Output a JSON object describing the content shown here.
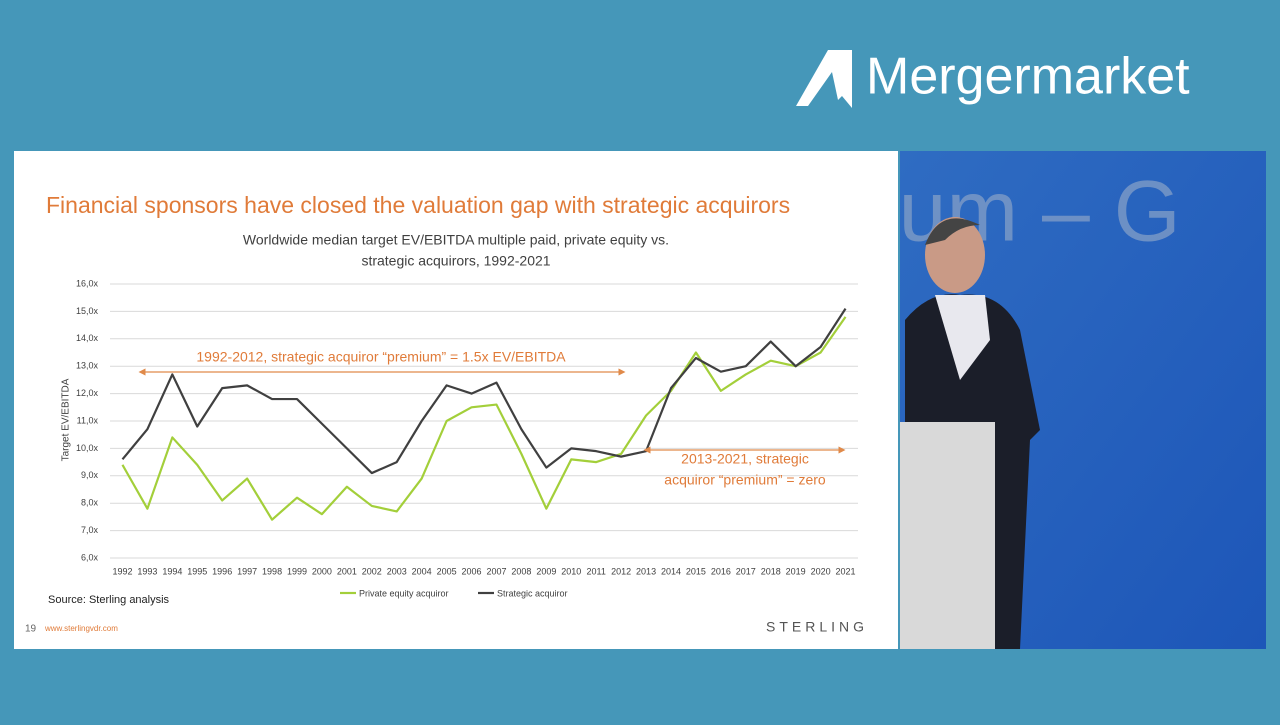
{
  "header": {
    "logo": "Mergermarket"
  },
  "stage": {
    "backdrop_text": "rum – G"
  },
  "slide": {
    "title": "Financial sponsors have closed the valuation gap with strategic acquirors",
    "source": "Source: Sterling analysis",
    "page_number": "19",
    "url": "www.sterlingvdr.com",
    "brand": "STERLING"
  },
  "chart_data": {
    "type": "line",
    "subtitle": [
      "Worldwide median target EV/EBITDA multiple paid, private equity vs.",
      "strategic acquirors, 1992-2021"
    ],
    "y_label": "Target EV/EBITDA",
    "categories": [
      "1992",
      "1993",
      "1994",
      "1995",
      "1996",
      "1997",
      "1998",
      "1999",
      "2000",
      "2001",
      "2002",
      "2003",
      "2004",
      "2005",
      "2006",
      "2007",
      "2008",
      "2009",
      "2010",
      "2011",
      "2012",
      "2013",
      "2014",
      "2015",
      "2016",
      "2017",
      "2018",
      "2019",
      "2020",
      "2021"
    ],
    "series": [
      {
        "name": "Private equity acquiror",
        "color": "#a3cf3a",
        "values": [
          9.4,
          7.8,
          10.4,
          9.4,
          8.1,
          8.9,
          7.4,
          8.2,
          7.6,
          8.6,
          7.9,
          7.7,
          8.9,
          11.0,
          11.5,
          11.6,
          9.8,
          7.8,
          9.6,
          9.5,
          9.8,
          11.2,
          12.1,
          13.5,
          12.1,
          12.7,
          13.2,
          13.0,
          13.5,
          14.8
        ]
      },
      {
        "name": "Strategic acquiror",
        "color": "#404040",
        "values": [
          9.6,
          10.7,
          12.7,
          10.8,
          12.2,
          12.3,
          11.8,
          11.8,
          10.9,
          10.0,
          9.1,
          9.5,
          11.0,
          12.3,
          12.0,
          12.4,
          10.7,
          9.3,
          10.0,
          9.9,
          9.7,
          9.9,
          12.2,
          13.3,
          12.8,
          13.0,
          13.9,
          13.0,
          13.7,
          15.1
        ]
      }
    ],
    "ylim": [
      6,
      16
    ],
    "yticks": [
      {
        "value": 6,
        "label": "6,0x"
      },
      {
        "value": 7,
        "label": "7,0x"
      },
      {
        "value": 8,
        "label": "8,0x"
      },
      {
        "value": 9,
        "label": "9,0x"
      },
      {
        "value": 10,
        "label": "10,0x"
      },
      {
        "value": 11,
        "label": "11,0x"
      },
      {
        "value": 12,
        "label": "12,0x"
      },
      {
        "value": 13,
        "label": "13,0x"
      },
      {
        "value": 14,
        "label": "14,0x"
      },
      {
        "value": 15,
        "label": "15,0x"
      },
      {
        "value": 16,
        "label": "16,0x"
      }
    ],
    "grid": true,
    "annotations": [
      {
        "lines": [
          "1992-2012, strategic acquiror “premium” = 1.5x EV/EBITDA"
        ]
      },
      {
        "lines": [
          "2013-2021, strategic",
          "acquiror “premium” = zero"
        ]
      }
    ]
  }
}
